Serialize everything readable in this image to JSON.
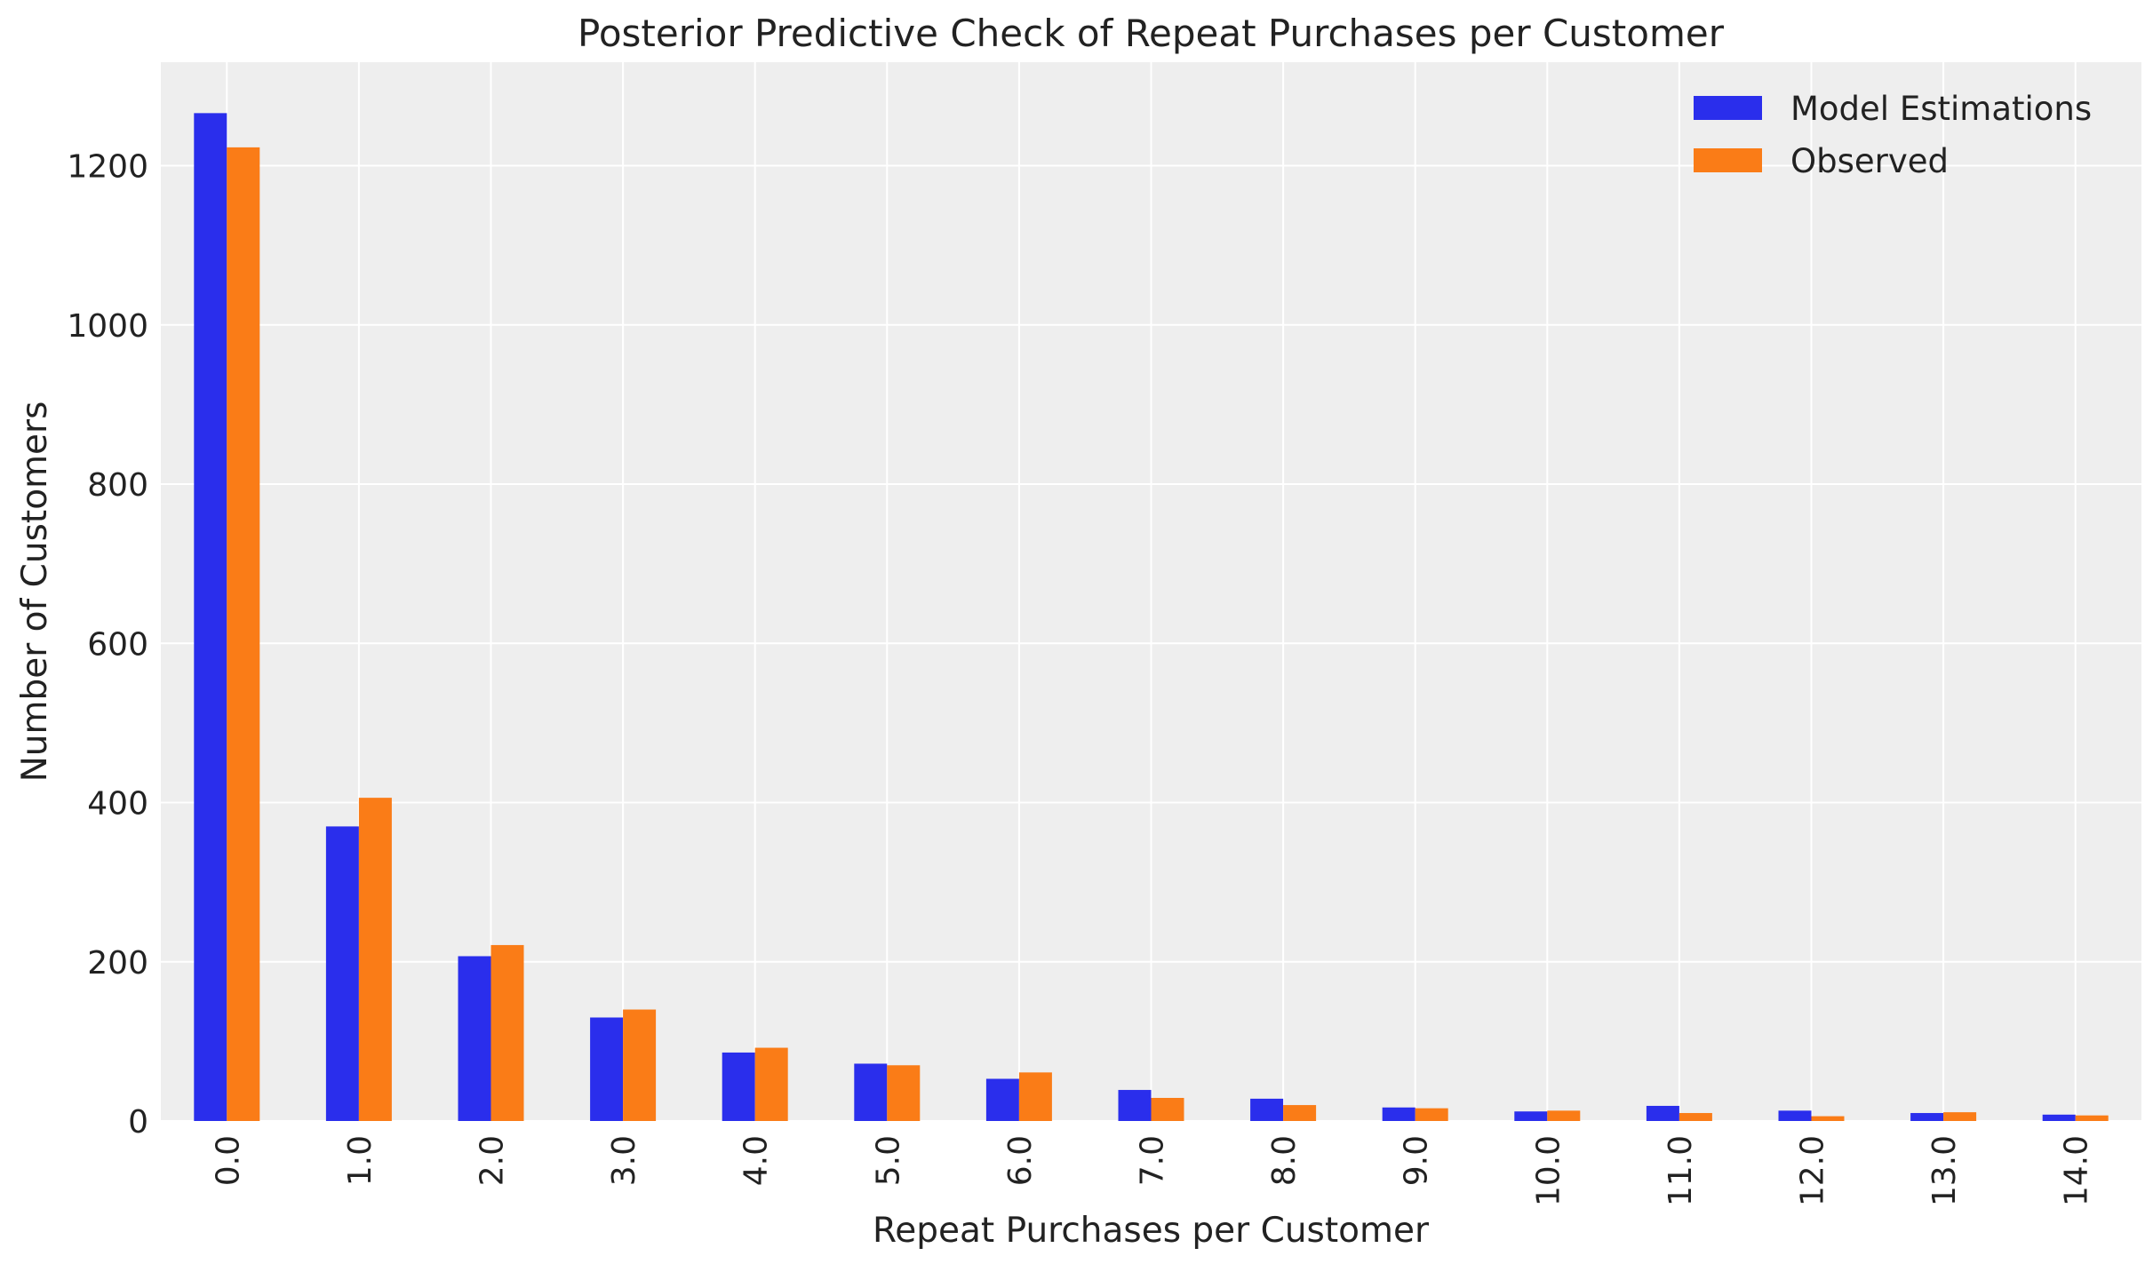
{
  "chart_data": {
    "type": "bar",
    "title": "Posterior Predictive Check of Repeat Purchases per Customer",
    "xlabel": "Repeat Purchases per Customer",
    "ylabel": "Number of Customers",
    "categories": [
      "0.0",
      "1.0",
      "2.0",
      "3.0",
      "4.0",
      "5.0",
      "6.0",
      "7.0",
      "8.0",
      "9.0",
      "10.0",
      "11.0",
      "12.0",
      "13.0",
      "14.0"
    ],
    "series": [
      {
        "name": "Model Estimations",
        "color": "#2a2eec",
        "values": [
          1266,
          370,
          207,
          130,
          86,
          72,
          53,
          39,
          28,
          17,
          12,
          19,
          13,
          10,
          8
        ]
      },
      {
        "name": "Observed",
        "color": "#fa7c17",
        "values": [
          1223,
          406,
          221,
          140,
          92,
          70,
          61,
          29,
          20,
          16,
          13,
          10,
          6,
          11,
          7
        ]
      }
    ],
    "ylim": [
      0,
      1330
    ],
    "yticks": [
      0,
      200,
      400,
      600,
      800,
      1000,
      1200
    ],
    "grid": true,
    "legend_position": "top-right",
    "background_color": "#eeeeee",
    "grid_color": "#ffffff"
  }
}
